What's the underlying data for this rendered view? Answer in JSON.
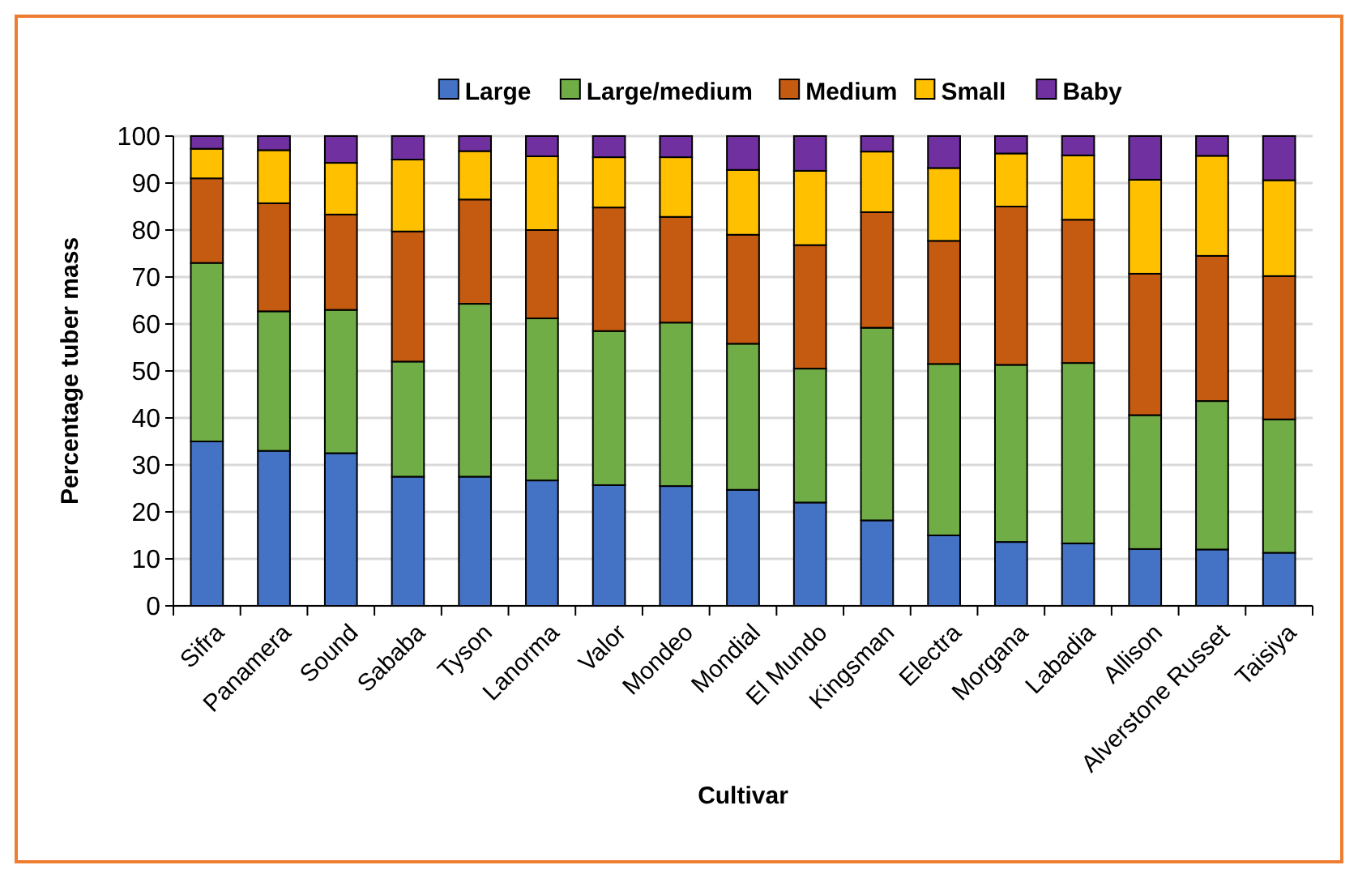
{
  "chart_data": {
    "type": "bar",
    "stacked": true,
    "xlabel": "Cultivar",
    "ylabel": "Percentage tuber mass",
    "categories": [
      "Sifra",
      "Panamera",
      "Sound",
      "Sababa",
      "Tyson",
      "Lanorma",
      "Valor",
      "Mondeo",
      "Mondial",
      "El Mundo",
      "Kingsman",
      "Electra",
      "Morgana",
      "Labadia",
      "Allison",
      "Alverstone Russet",
      "Taisiya"
    ],
    "series": [
      {
        "name": "Large",
        "color": "#4472c4",
        "values": [
          35,
          33,
          32.5,
          27.5,
          27.5,
          26.7,
          25.7,
          25.5,
          24.7,
          22,
          18.2,
          15,
          13.6,
          13.3,
          12.1,
          12,
          11.3
        ]
      },
      {
        "name": "Large/medium",
        "color": "#70ad47",
        "values": [
          38,
          29.7,
          30.5,
          24.5,
          36.8,
          34.5,
          32.8,
          34.8,
          31.1,
          28.5,
          41,
          36.5,
          37.7,
          38.4,
          28.5,
          31.6,
          28.4
        ]
      },
      {
        "name": "Medium",
        "color": "#c55a11",
        "values": [
          18,
          23,
          20.3,
          27.7,
          22.2,
          18.8,
          26.3,
          22.5,
          23.2,
          26.3,
          24.6,
          26.2,
          33.7,
          30.5,
          30.1,
          30.9,
          30.5
        ]
      },
      {
        "name": "Small",
        "color": "#ffc000",
        "values": [
          6.3,
          11.3,
          11,
          15.3,
          10.3,
          15.7,
          10.7,
          12.7,
          13.8,
          15.8,
          12.9,
          15.5,
          11.3,
          13.7,
          20,
          21.3,
          20.4
        ]
      },
      {
        "name": "Baby",
        "color": "#7030a0",
        "values": [
          2.7,
          3,
          5.7,
          5,
          3.2,
          4.3,
          4.5,
          4.5,
          7.2,
          7.4,
          3.3,
          6.8,
          3.7,
          4.1,
          9.3,
          4.2,
          9.4
        ]
      }
    ],
    "ylim": [
      0,
      100
    ],
    "yticks": [
      0,
      10,
      20,
      30,
      40,
      50,
      60,
      70,
      80,
      90,
      100
    ],
    "grid": "y",
    "legend": "top"
  }
}
